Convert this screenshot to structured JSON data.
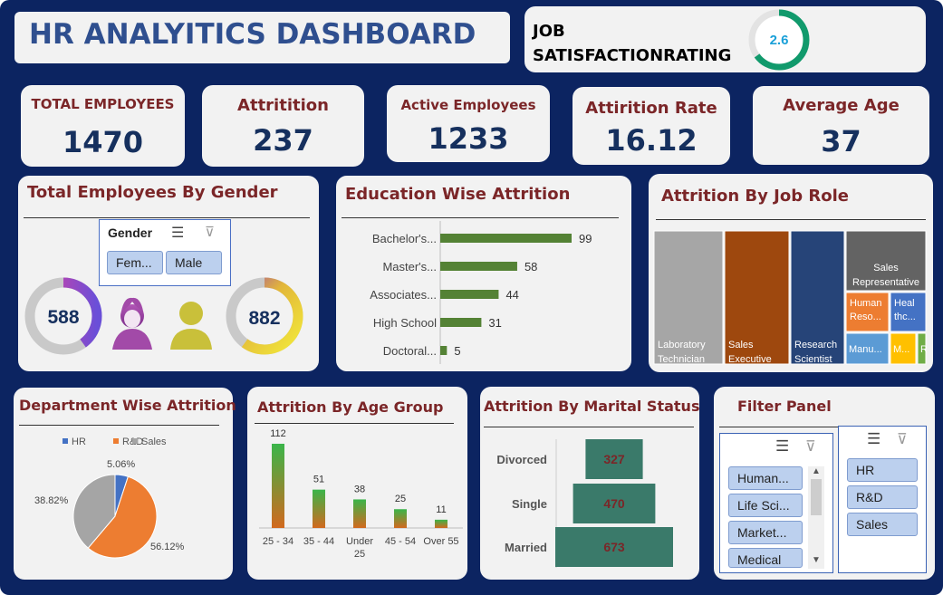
{
  "header": {
    "title": "HR ANALYITICS DASHBOARD",
    "job_sat_title": "JOB SATISFACTIONRATING",
    "job_sat_value": "2.6",
    "job_sat_value_num": 2.6,
    "job_sat_max": 4
  },
  "kpis": [
    {
      "label": "TOTAL EMPLOYEES",
      "value": "1470"
    },
    {
      "label": "Attritition",
      "value": "237"
    },
    {
      "label": "Active Employees",
      "value": "1233"
    },
    {
      "label": "Attirition Rate",
      "value": "16.12"
    },
    {
      "label": "Average Age",
      "value": "37"
    }
  ],
  "gender": {
    "title": "Total Employees By Gender",
    "slicer_title": "Gender",
    "options": [
      "Fem...",
      "Male"
    ],
    "female_count": "588",
    "male_count": "882",
    "female_value": 588,
    "male_value": 882,
    "total": 1470
  },
  "education": {
    "title": "Education Wise Attrition"
  },
  "job_role": {
    "title": "Attrition By Job Role"
  },
  "department": {
    "title": "Department Wise Attrition"
  },
  "age_group": {
    "title": "Attrition By Age Group"
  },
  "marital": {
    "title": "Attrition By Marital Status"
  },
  "filter_panel": {
    "title": "Filter Panel",
    "fields": [
      "Human...",
      "Life Sci...",
      "Market...",
      "Medical"
    ],
    "departments": [
      "HR",
      "R&D",
      "Sales"
    ]
  },
  "icons": {
    "multi_select": "multi-select-icon",
    "clear_filter": "clear-filter-icon",
    "female": "female-icon",
    "male": "male-icon"
  },
  "colors": {
    "navy": "#0c2461",
    "title_red": "#7b2628",
    "bar_green": "#548235",
    "hr_blue": "#4472c4",
    "rd_orange": "#ed7d31",
    "sales_gray": "#a5a5a5",
    "funnel_teal": "#3a7a6a"
  },
  "chart_data": [
    {
      "id": "education",
      "type": "bar",
      "orientation": "horizontal",
      "title": "Education Wise Attrition",
      "categories": [
        "Bachelor's...",
        "Master's...",
        "Associates...",
        "High School",
        "Doctoral..."
      ],
      "values": [
        99,
        58,
        44,
        31,
        5
      ]
    },
    {
      "id": "job_role",
      "type": "treemap",
      "title": "Attrition By Job Role",
      "categories": [
        "Laboratory Technician",
        "Sales Executive",
        "Research Scientist",
        "Sales Representative",
        "Human Reso...",
        "Heal thc...",
        "Manu...",
        "M...",
        "R"
      ]
    },
    {
      "id": "department",
      "type": "pie",
      "title": "Department Wise Attrition",
      "legend": [
        "HR",
        "R&D",
        "Sales"
      ],
      "values": [
        5.06,
        56.12,
        38.82
      ],
      "labels": [
        "5.06%",
        "56.12%",
        "38.82%"
      ],
      "legend_position": "top"
    },
    {
      "id": "age_group",
      "type": "bar",
      "title": "Attrition By Age Group",
      "categories": [
        "25 - 34",
        "35 - 44",
        "Under 25",
        "45 - 54",
        "Over 55"
      ],
      "values": [
        112,
        51,
        38,
        25,
        11
      ]
    },
    {
      "id": "marital",
      "type": "bar",
      "orientation": "funnel",
      "title": "Attrition By Marital Status",
      "categories": [
        "Divorced",
        "Single",
        "Married"
      ],
      "values": [
        327,
        470,
        673
      ]
    }
  ]
}
